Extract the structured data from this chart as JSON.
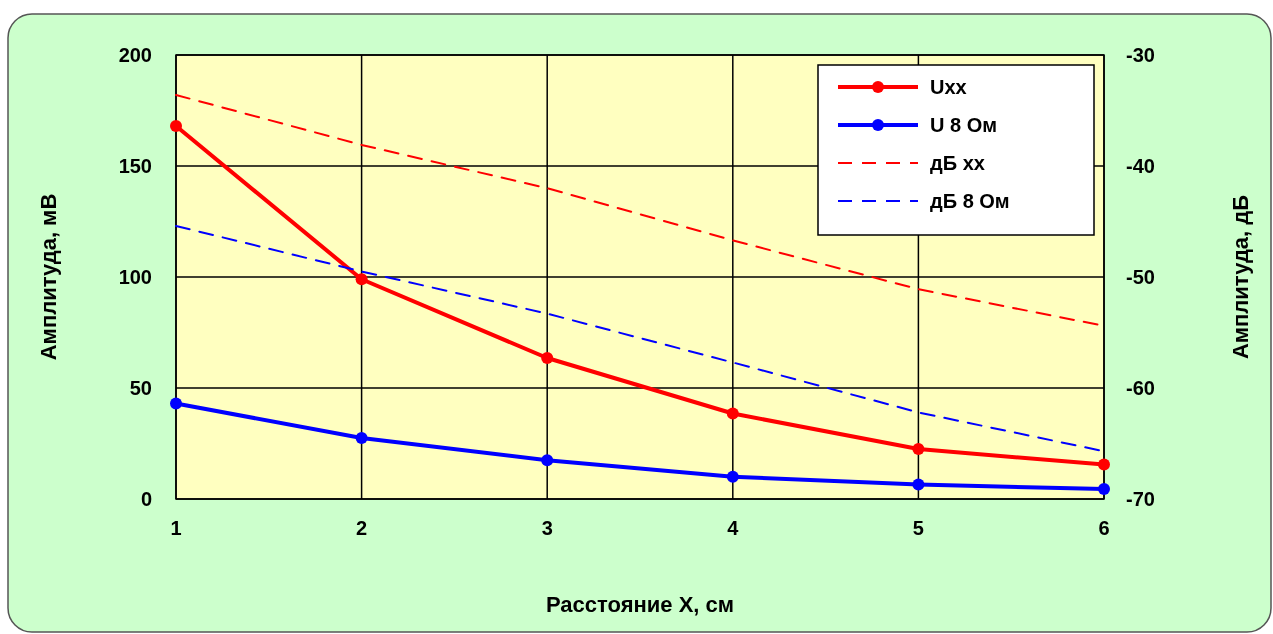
{
  "chart_data": {
    "type": "line",
    "xlabel": "Расстояние X, см",
    "ylabel": "Амплитуда, мВ",
    "y2label": "Амплитуда, дБ",
    "x": [
      1,
      2,
      3,
      4,
      5,
      6
    ],
    "xlim": [
      1,
      6
    ],
    "xticks": [
      1,
      2,
      3,
      4,
      5,
      6
    ],
    "ylim": [
      0,
      200
    ],
    "yticks": [
      0,
      50,
      100,
      150,
      200
    ],
    "y2lim": [
      -70,
      -30
    ],
    "y2ticks": [
      -70,
      -60,
      -50,
      -40,
      -30
    ],
    "grid": true,
    "legend": "top right",
    "series": [
      {
        "name": "Uxx",
        "color": "#ff0000",
        "values": [
          168,
          99,
          63.5,
          38.5,
          22.5,
          15.5
        ],
        "marker": "circle",
        "line_style": "solid"
      },
      {
        "name": "U 8 Ом",
        "color": "#0000ff",
        "values": [
          43,
          27.5,
          17.5,
          10,
          6.5,
          4.5
        ],
        "marker": "circle",
        "line_style": "solid"
      },
      {
        "name": "дБ хх",
        "color": "#ff0000",
        "values": [
          -33.6,
          -38.1,
          -42,
          -46.7,
          -51.1,
          -54.4
        ],
        "axis": "y2",
        "marker": "none",
        "line_style": "dashed"
      },
      {
        "name": "дБ 8 Ом",
        "color": "#0000ff",
        "values": [
          -45.4,
          -49.5,
          -53.3,
          -57.7,
          -62.2,
          -65.7
        ],
        "axis": "y2",
        "marker": "none",
        "line_style": "dashed"
      }
    ]
  }
}
